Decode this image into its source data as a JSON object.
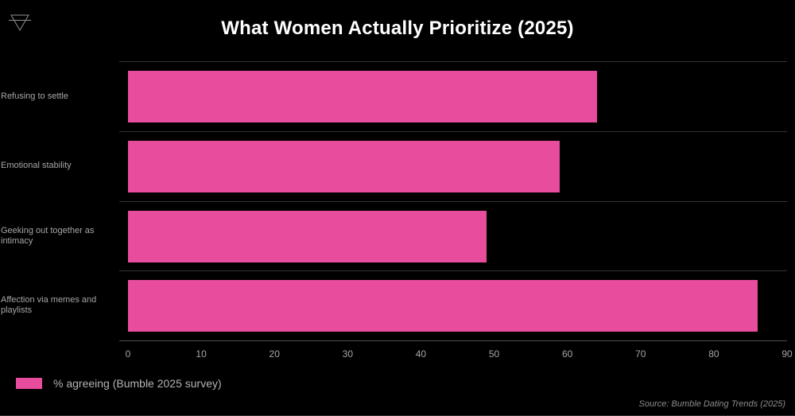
{
  "header": {
    "icon_name": "earth-symbol-icon"
  },
  "chart_data": {
    "type": "bar",
    "orientation": "horizontal",
    "title": "What Women Actually Prioritize (2025)",
    "categories": [
      "Refusing to settle",
      "Emotional stability",
      "Geeking out together as intimacy",
      "Affection via memes and playlists"
    ],
    "values": [
      64,
      59,
      49,
      86
    ],
    "series_name": "% agreeing (Bumble 2025 survey)",
    "x_ticks": [
      0,
      10,
      20,
      30,
      40,
      50,
      60,
      70,
      80,
      90
    ],
    "xlim": [
      0,
      90
    ],
    "xlabel": "",
    "ylabel": "",
    "grid": "row-separators",
    "legend_position": "bottom-left",
    "colors": {
      "bar": "#e84c9c",
      "background": "#000000",
      "title_text": "#ffffff",
      "axis_text": "#a6a6a6",
      "grid_line": "#333333"
    }
  },
  "legend": {
    "label": "% agreeing (Bumble 2025 survey)"
  },
  "footer": {
    "source": "Source: Bumble Dating Trends (2025)"
  }
}
